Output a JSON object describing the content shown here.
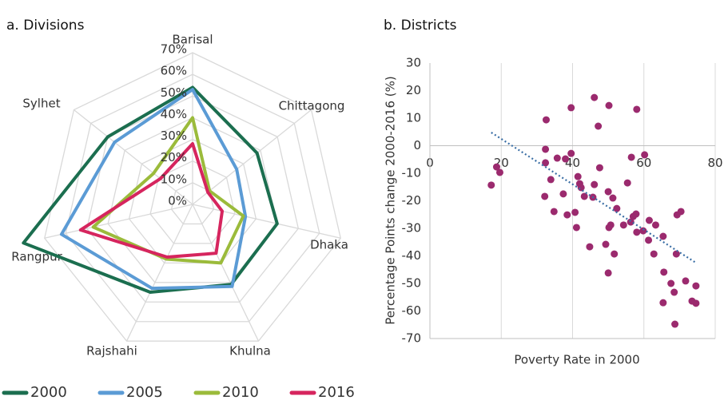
{
  "chart_data": [
    {
      "type": "radar",
      "title": "a. Divisions",
      "categories": [
        "Barisal",
        "Chittagong",
        "Dhaka",
        "Khulna",
        "Rajshahi",
        "Rangpur",
        "Sylhet"
      ],
      "series": [
        {
          "name": "2000",
          "color": "#1b6e4f",
          "values": [
            54,
            38,
            40,
            41,
            45,
            80,
            50
          ]
        },
        {
          "name": "2005",
          "color": "#5b9bd5",
          "values": [
            53,
            26,
            25,
            42,
            43,
            62,
            46
          ]
        },
        {
          "name": "2010",
          "color": "#9bbb3b",
          "values": [
            40,
            10,
            24,
            30,
            28,
            47,
            23
          ]
        },
        {
          "name": "2016",
          "color": "#d6255e",
          "values": [
            28,
            9,
            14,
            25,
            27,
            53,
            19
          ]
        }
      ],
      "rlim": [
        0,
        70
      ],
      "rticks": [
        {
          "value": 0,
          "label": "0%"
        },
        {
          "value": 10,
          "label": "10%"
        },
        {
          "value": 20,
          "label": "20%"
        },
        {
          "value": 30,
          "label": "30%"
        },
        {
          "value": 40,
          "label": "40%"
        },
        {
          "value": 50,
          "label": "50%"
        },
        {
          "value": 60,
          "label": "60%"
        },
        {
          "value": 70,
          "label": "70%"
        }
      ],
      "grid": true,
      "legend": "bottom"
    },
    {
      "type": "scatter",
      "title": "b. Districts",
      "x_label": "Poverty Rate in 2000",
      "y_label": "Percentage Points change 2000-2016 (%)",
      "color": "#9b2a6e",
      "x": [
        18.7,
        19.6,
        17.2,
        32.6,
        32.4,
        32.4,
        33.9,
        32.2,
        35.7,
        38.0,
        39.6,
        39.6,
        37.4,
        34.8,
        38.5,
        40.7,
        41.5,
        42.0,
        42.4,
        43.3,
        41.1,
        45.7,
        46.1,
        46.1,
        47.2,
        47.6,
        44.8,
        50.2,
        50.0,
        51.3,
        52.4,
        50.2,
        50.7,
        49.3,
        50.0,
        51.7,
        54.3,
        55.4,
        56.3,
        56.5,
        58.0,
        57.0,
        57.8,
        58.0,
        60.2,
        59.8,
        61.5,
        61.3,
        63.3,
        62.8,
        65.4,
        65.6,
        67.6,
        65.4,
        68.5,
        68.7,
        69.1,
        69.3,
        70.4,
        71.7,
        73.5,
        74.6,
        74.6
      ],
      "y": [
        -7.7,
        -9.7,
        -14.3,
        9.4,
        -1.3,
        -6.2,
        -12.3,
        -18.4,
        -4.5,
        -4.8,
        -2.8,
        13.8,
        -17.5,
        -23.9,
        -25.1,
        -24.2,
        -11.2,
        -13.8,
        -15.2,
        -18.4,
        -29.7,
        -18.7,
        -14.1,
        17.5,
        7.1,
        -8.0,
        -36.7,
        14.6,
        -16.7,
        -19.0,
        -22.8,
        -29.7,
        -28.8,
        -35.8,
        -46.2,
        -39.3,
        -28.8,
        -13.5,
        -27.7,
        -4.2,
        13.2,
        -25.7,
        -24.8,
        -31.4,
        -3.3,
        -30.9,
        -27.1,
        -34.3,
        -28.8,
        -39.3,
        -32.9,
        -45.9,
        -50.0,
        -57.0,
        -53.2,
        -64.8,
        -39.3,
        -25.1,
        -23.9,
        -49.1,
        -56.4,
        -57.2,
        -50.9
      ],
      "trendline": {
        "color": "#3a6ea5",
        "x": [
          17.2,
          74.6
        ],
        "y": [
          4.8,
          -42.5
        ]
      },
      "xlim": [
        0,
        80
      ],
      "xticks": [
        0,
        20,
        40,
        60,
        80
      ],
      "ylim": [
        -70,
        30
      ],
      "yticks": [
        -70,
        -60,
        -50,
        -40,
        -30,
        -20,
        -10,
        0,
        10,
        20,
        30
      ],
      "grid": true
    }
  ]
}
